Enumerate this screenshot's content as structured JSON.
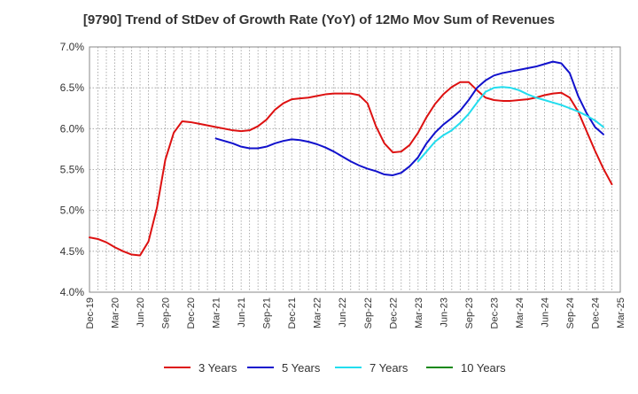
{
  "chart_data": {
    "type": "line",
    "title": "[9790]  Trend of StDev of Growth Rate (YoY) of 12Mo Mov Sum of Revenues",
    "xlabel": "",
    "ylabel": "",
    "ylim": [
      4.0,
      7.0
    ],
    "y_ticks": [
      "4.0%",
      "4.5%",
      "5.0%",
      "5.5%",
      "6.0%",
      "6.5%",
      "7.0%"
    ],
    "y_tick_values": [
      4.0,
      4.5,
      5.0,
      5.5,
      6.0,
      6.5,
      7.0
    ],
    "x_ticks": [
      "Dec-19",
      "Mar-20",
      "Jun-20",
      "Sep-20",
      "Dec-20",
      "Mar-21",
      "Jun-21",
      "Sep-21",
      "Dec-21",
      "Mar-22",
      "Jun-22",
      "Sep-22",
      "Dec-22",
      "Mar-23",
      "Jun-23",
      "Sep-23",
      "Dec-23",
      "Mar-24",
      "Jun-24",
      "Sep-24",
      "Dec-24",
      "Mar-25"
    ],
    "x_start": "Dec-19",
    "grid": true,
    "legend_position": "bottom",
    "series": [
      {
        "name": "3 Years",
        "color": "#dd1111",
        "start_index": 0,
        "values": [
          4.67,
          4.65,
          4.61,
          4.55,
          4.5,
          4.46,
          4.45,
          4.62,
          5.03,
          5.62,
          5.95,
          6.09,
          6.08,
          6.06,
          6.04,
          6.02,
          6.0,
          5.98,
          5.97,
          5.98,
          6.03,
          6.11,
          6.23,
          6.31,
          6.36,
          6.37,
          6.38,
          6.4,
          6.42,
          6.43,
          6.43,
          6.43,
          6.41,
          6.31,
          6.03,
          5.82,
          5.71,
          5.72,
          5.8,
          5.95,
          6.14,
          6.3,
          6.42,
          6.51,
          6.57,
          6.57,
          6.47,
          6.38,
          6.35,
          6.34,
          6.34,
          6.35,
          6.36,
          6.38,
          6.41,
          6.43,
          6.44,
          6.38,
          6.21,
          5.97,
          5.73,
          5.51,
          5.32
        ]
      },
      {
        "name": "5 Years",
        "color": "#1111cc",
        "start_index": 15,
        "values": [
          5.88,
          5.85,
          5.82,
          5.78,
          5.76,
          5.76,
          5.78,
          5.82,
          5.85,
          5.87,
          5.86,
          5.84,
          5.81,
          5.77,
          5.72,
          5.66,
          5.6,
          5.55,
          5.51,
          5.48,
          5.44,
          5.43,
          5.46,
          5.54,
          5.65,
          5.82,
          5.95,
          6.05,
          6.13,
          6.22,
          6.35,
          6.5,
          6.59,
          6.65,
          6.68,
          6.7,
          6.72,
          6.74,
          6.76,
          6.79,
          6.82,
          6.8,
          6.68,
          6.4,
          6.19,
          6.02,
          5.93
        ]
      },
      {
        "name": "7 Years",
        "color": "#22ddee",
        "start_index": 39,
        "values": [
          5.6,
          5.72,
          5.84,
          5.92,
          5.98,
          6.07,
          6.18,
          6.32,
          6.45,
          6.5,
          6.51,
          6.5,
          6.47,
          6.42,
          6.38,
          6.35,
          6.32,
          6.29,
          6.25,
          6.21,
          6.16,
          6.1,
          6.02
        ]
      },
      {
        "name": "10 Years",
        "color": "#118811",
        "start_index": 0,
        "values": []
      }
    ]
  }
}
